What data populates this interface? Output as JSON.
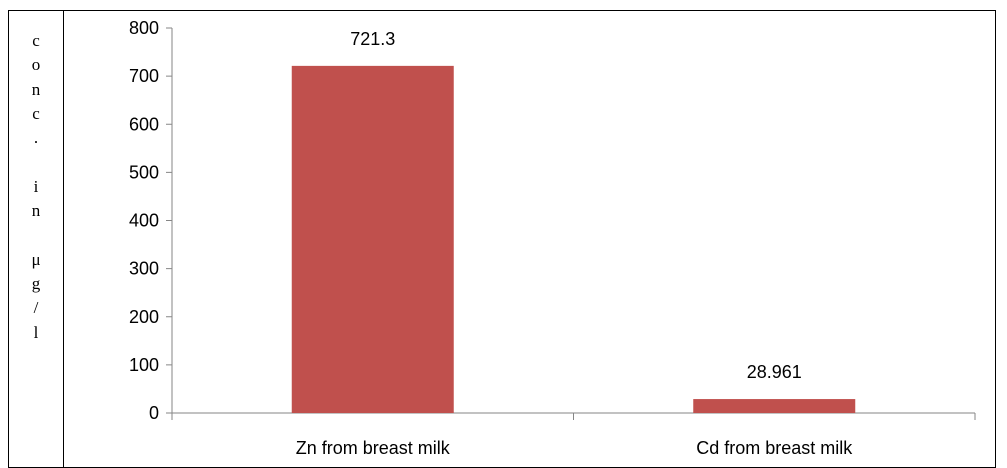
{
  "chart_data": {
    "type": "bar",
    "categories": [
      "Zn from breast milk",
      "Cd from breast milk"
    ],
    "values": [
      721.3,
      28.961
    ],
    "data_labels": [
      "721.3",
      "28.961"
    ],
    "ylabel": "conc. in μg/l",
    "ylabel_rendered": "c\no\nn\nc\n.\n\ni\nn\n\nμ\ng\n/\nl",
    "ylim": [
      0,
      800
    ],
    "yticks": [
      0,
      100,
      200,
      300,
      400,
      500,
      600,
      700,
      800
    ],
    "bar_color": "#c0504d",
    "legend": "none",
    "grid": false
  }
}
